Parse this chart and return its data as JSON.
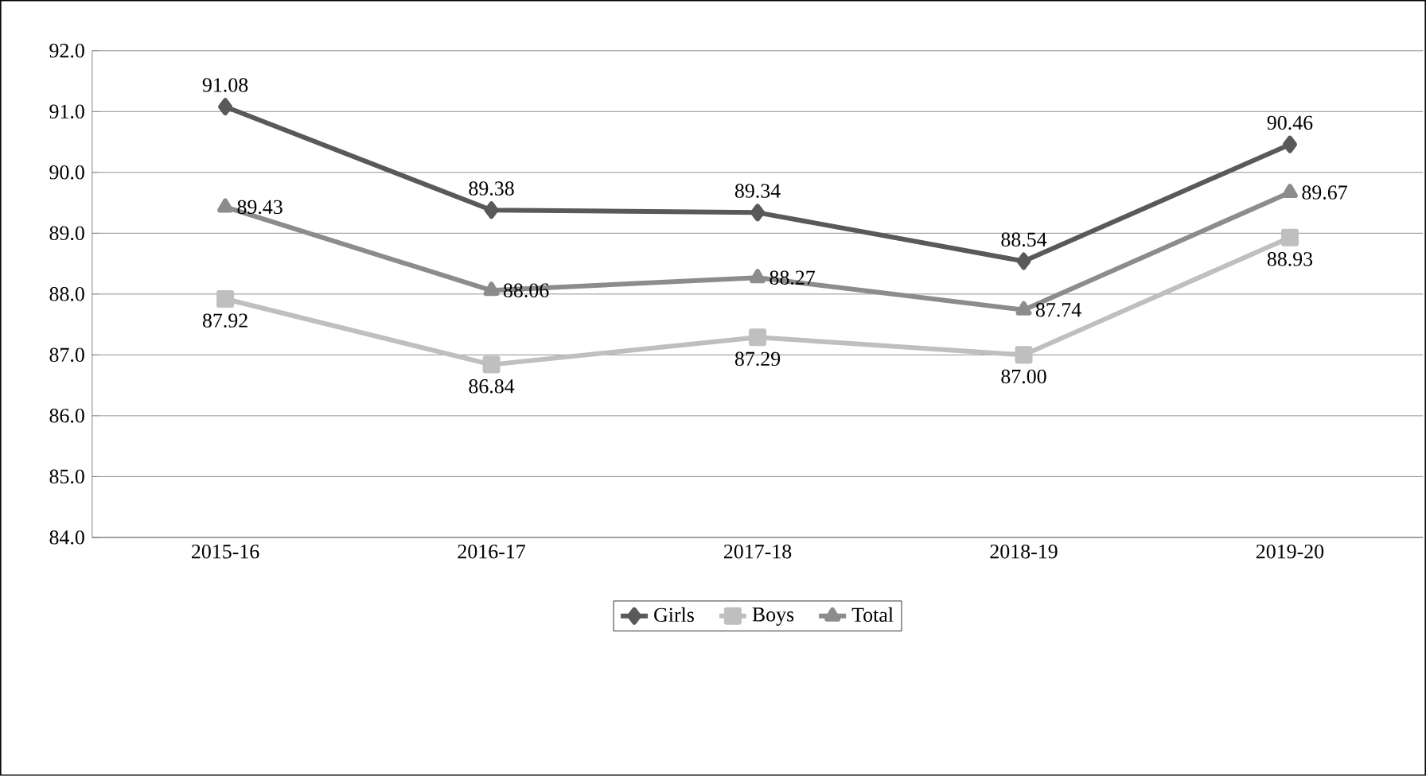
{
  "chart_data": {
    "type": "line",
    "categories": [
      "2015-16",
      "2016-17",
      "2017-18",
      "2018-19",
      "2019-20"
    ],
    "series": [
      {
        "name": "Girls",
        "color": "#595959",
        "marker": "diamond",
        "values": [
          91.08,
          89.38,
          89.34,
          88.54,
          90.46
        ],
        "value_labels": [
          "91.08",
          "89.38",
          "89.34",
          "88.54",
          "90.46"
        ]
      },
      {
        "name": "Boys",
        "color": "#bfbfbf",
        "marker": "square",
        "values": [
          87.92,
          86.84,
          87.29,
          87.0,
          88.93
        ],
        "value_labels": [
          "87.92",
          "86.84",
          "87.29",
          "87.00",
          "88.93"
        ]
      },
      {
        "name": "Total",
        "color": "#8c8c8c",
        "marker": "triangle",
        "values": [
          89.43,
          88.06,
          88.27,
          87.74,
          89.67
        ],
        "value_labels": [
          "89.43",
          "88.06",
          "88.27",
          "87.74",
          "89.67"
        ]
      }
    ],
    "ylim": [
      84,
      92
    ],
    "yticks": [
      {
        "value": 84,
        "label": "84.0"
      },
      {
        "value": 85,
        "label": "85.0"
      },
      {
        "value": 86,
        "label": "86.0"
      },
      {
        "value": 87,
        "label": "87.0"
      },
      {
        "value": 88,
        "label": "88.0"
      },
      {
        "value": 89,
        "label": "89.0"
      },
      {
        "value": 90,
        "label": "90.0"
      },
      {
        "value": 91,
        "label": "91.0"
      },
      {
        "value": 92,
        "label": "92.0"
      }
    ],
    "grid": "y",
    "legend": "bottom",
    "line_style": "solid"
  }
}
